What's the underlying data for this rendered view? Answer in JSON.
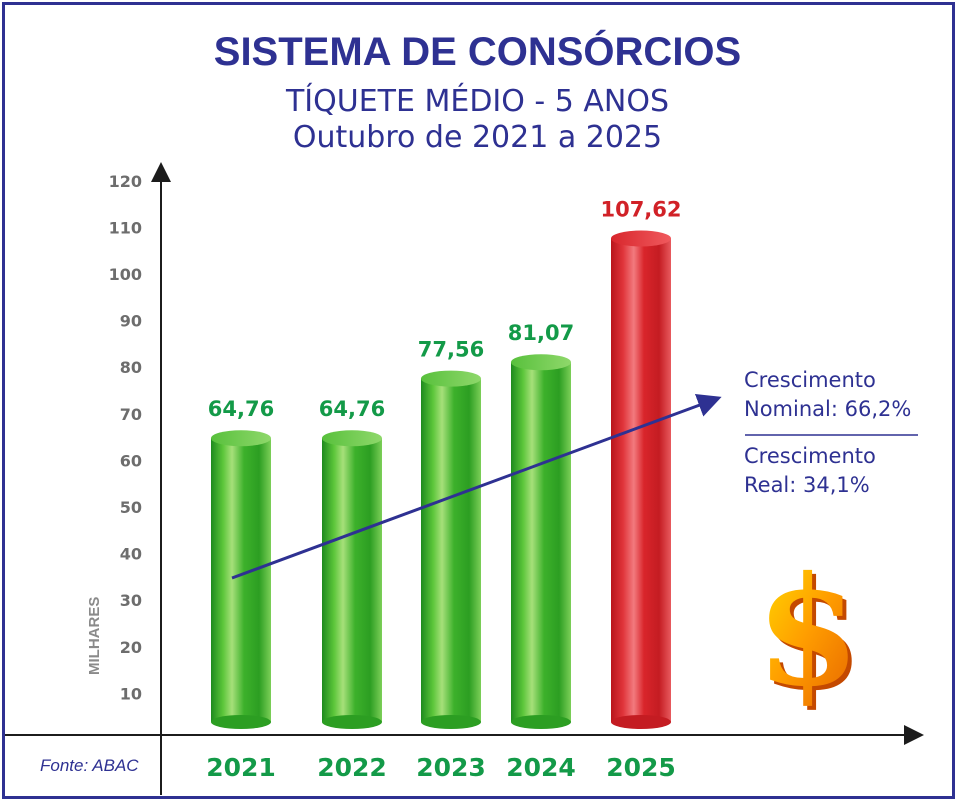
{
  "chart_data": {
    "type": "bar",
    "title": "SISTEMA DE CONSÓRCIOS",
    "subtitle": "TÍQUETE MÉDIO - 5 ANOS",
    "subtitle2": "Outubro de 2021 a 2025",
    "ylabel": "MILHARES",
    "xlabel": "",
    "ylim": [
      0,
      120
    ],
    "yticks": [
      "10",
      "20",
      "30",
      "40",
      "50",
      "60",
      "70",
      "80",
      "90",
      "100",
      "110",
      "120"
    ],
    "categories": [
      "2021",
      "2022",
      "2023",
      "2024",
      "2025"
    ],
    "values": [
      64.76,
      64.76,
      77.56,
      81.07,
      107.62
    ],
    "value_labels": [
      "64,76",
      "64,76",
      "77,56",
      "81,07",
      "107,62"
    ],
    "bar_colors": [
      "green",
      "green",
      "green",
      "green",
      "red"
    ],
    "grid": false,
    "annotations": {
      "nominal_line1": "Crescimento",
      "nominal_line2": "Nominal: 66,2%",
      "real_line1": "Crescimento",
      "real_line2": "Real: 34,1%"
    },
    "source": "Fonte: ABAC"
  },
  "colors": {
    "navy": "#2e3192",
    "green_label": "#139a48",
    "red_label": "#d12127"
  }
}
